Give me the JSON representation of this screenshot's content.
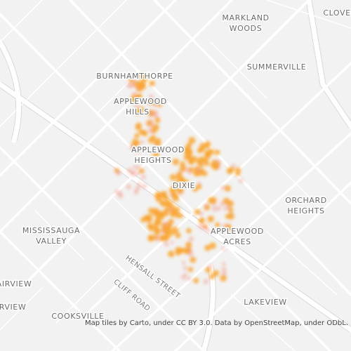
{
  "map": {
    "places": [
      {
        "lines": [
          "MARKLAND",
          "WOODS"
        ]
      },
      {
        "lines": [
          "CLOVE"
        ]
      },
      {
        "lines": [
          "SUMMERVILLE"
        ]
      },
      {
        "lines": [
          "BURNHAMTHORPE"
        ]
      },
      {
        "lines": [
          "APPLEWOOD",
          "HILLS"
        ]
      },
      {
        "lines": [
          "APPLEWOOD",
          "HEIGHTS"
        ]
      },
      {
        "lines": [
          "DIXIE"
        ]
      },
      {
        "lines": [
          "ORCHARD",
          "HEIGHTS"
        ]
      },
      {
        "lines": [
          "MISSISSAUGA",
          "VALLEY"
        ]
      },
      {
        "lines": [
          "APPLEWOOD",
          "ACRES"
        ]
      },
      {
        "lines": [
          "AIRVIEW"
        ]
      },
      {
        "lines": [
          "RVIEW"
        ]
      },
      {
        "lines": [
          "LAKEVIEW"
        ]
      },
      {
        "lines": [
          "COOKSVILLE"
        ]
      }
    ],
    "streets": [
      "HENSALL STREET",
      "CLIFF ROAD"
    ],
    "attribution": "Map tiles by Carto, under CC BY 3.0. Data by OpenStreetMap, under ODbL."
  }
}
